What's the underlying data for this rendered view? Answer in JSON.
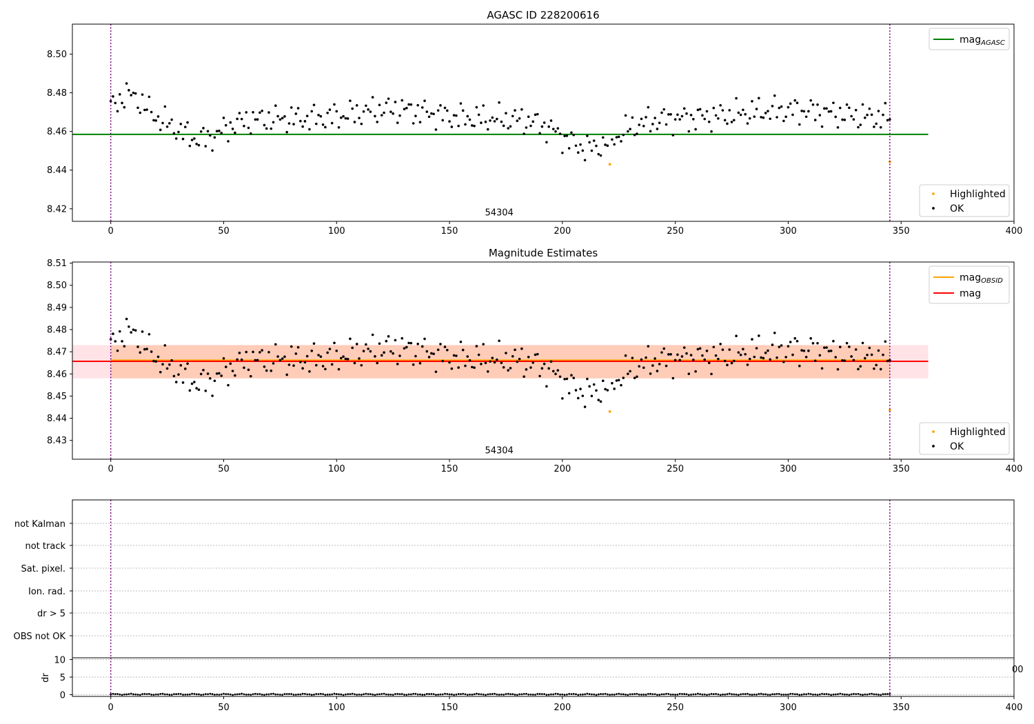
{
  "chart_data": [
    {
      "type": "scatter",
      "title": "AGASC ID 228200616",
      "xlim": [
        -17,
        400
      ],
      "ylim": [
        8.4135,
        8.5155
      ],
      "xticks": [
        "0",
        "50",
        "100",
        "150",
        "200",
        "250",
        "300",
        "350",
        "400"
      ],
      "yticks": [
        "8.42",
        "8.44",
        "8.46",
        "8.48",
        "8.50"
      ],
      "vlines": [
        0,
        345
      ],
      "hline": {
        "name": "mag_AGASC",
        "y": 8.4585,
        "xmin": -17,
        "xmax": 362,
        "color": "#008000"
      },
      "annotation": {
        "text": "54304",
        "x": 172,
        "y": 8.4165
      },
      "legend_lines": [
        {
          "label": "mag",
          "sub": "AGASC",
          "color": "#008000"
        }
      ],
      "legend_points": [
        {
          "label": "Highlighted",
          "color": "#ffa500"
        },
        {
          "label": "OK",
          "color": "#000000"
        }
      ],
      "series": [
        {
          "name": "Highlighted",
          "color": "#ffa500",
          "x": [
            221,
            345
          ],
          "y": [
            8.443,
            8.4443
          ]
        }
      ]
    },
    {
      "type": "scatter",
      "title": "Magnitude Estimates",
      "xlim": [
        -17,
        400
      ],
      "ylim": [
        8.4215,
        8.5105
      ],
      "xticks": [
        "0",
        "50",
        "100",
        "150",
        "200",
        "250",
        "300",
        "350",
        "400"
      ],
      "yticks": [
        "8.43",
        "8.44",
        "8.45",
        "8.46",
        "8.47",
        "8.48",
        "8.49",
        "8.50",
        "8.51"
      ],
      "vlines": [
        0,
        345
      ],
      "bands": [
        {
          "x0": -17,
          "x1": 362,
          "y0": 8.458,
          "y1": 8.473,
          "color": "#ff9aa8",
          "opacity": 0.28
        },
        {
          "x0": 0,
          "x1": 345,
          "y0": 8.458,
          "y1": 8.473,
          "color": "#ffa060",
          "opacity": 0.35
        }
      ],
      "lines": [
        {
          "name": "mag_OBSID",
          "y": 8.4662,
          "x0": 0,
          "x1": 345,
          "color": "#ffa500"
        },
        {
          "name": "mag",
          "y": 8.4657,
          "x0": -17,
          "x1": 362,
          "color": "#ff0000"
        }
      ],
      "annotation": {
        "text": "54304",
        "x": 172,
        "y": 8.4242
      },
      "legend_lines": [
        {
          "label": "mag",
          "sub": "OBSID",
          "color": "#ffa500"
        },
        {
          "label": "mag",
          "sub": "",
          "color": "#ff0000"
        }
      ],
      "legend_points": [
        {
          "label": "Highlighted",
          "color": "#ffa500"
        },
        {
          "label": "OK",
          "color": "#000000"
        }
      ],
      "series": [
        {
          "name": "Highlighted",
          "color": "#ffa500",
          "x": [
            221,
            345
          ],
          "y": [
            8.443,
            8.4437
          ]
        }
      ]
    },
    {
      "type": "scatter",
      "title": "",
      "flags": [
        "not Kalman",
        "not track",
        "Sat. pixel.",
        "Ion. rad.",
        "dr > 5",
        "OBS not OK"
      ],
      "dr": {
        "ylabel": "dr",
        "ylim": [
          -0.5,
          10.5
        ],
        "yticks": [
          "0",
          "5",
          "10"
        ],
        "level": 0.1
      },
      "xlim": [
        -17,
        400
      ],
      "xticks": [
        "0",
        "50",
        "100",
        "150",
        "200",
        "250",
        "300",
        "350",
        "400"
      ],
      "clipped_label": "00",
      "vlines": [
        0,
        345
      ]
    }
  ]
}
